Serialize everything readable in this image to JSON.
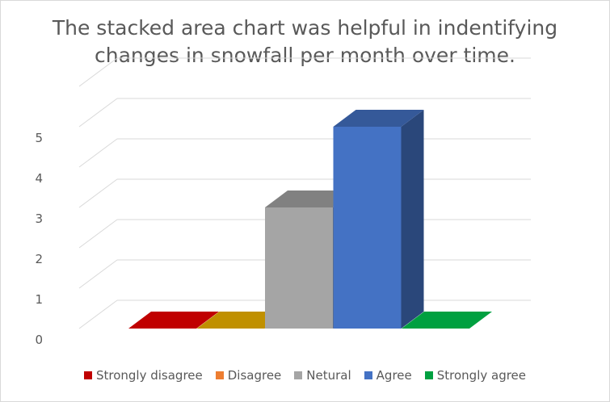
{
  "chart_data": {
    "type": "bar",
    "style": "3d-column",
    "title_lines": [
      "The stacked area chart was helpful in indentifying",
      "changes in snowfall per month over time."
    ],
    "categories": [
      "Strongly disagree",
      "Disagree",
      "Netural",
      "Agree",
      "Strongly agree"
    ],
    "values": [
      0,
      0,
      3,
      5,
      0
    ],
    "colors": [
      "#c00000",
      "#c09000",
      "#a5a5a5",
      "#4472c4",
      "#00a040"
    ],
    "y_ticks": [
      "0",
      "1",
      "2",
      "3",
      "4",
      "5"
    ],
    "ylim": [
      0,
      5
    ],
    "grid": true,
    "legend": {
      "position": "bottom",
      "entries": [
        "Strongly disagree",
        "Disagree",
        "Netural",
        "Agree",
        "Strongly agree"
      ],
      "colors": [
        "#c00000",
        "#ed7d31",
        "#a5a5a5",
        "#4472c4",
        "#00a040"
      ]
    }
  }
}
